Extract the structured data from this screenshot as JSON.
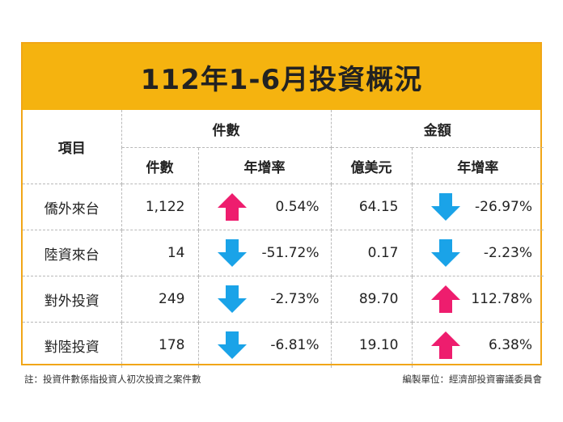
{
  "title": "112年1-6月投資概況",
  "headers": {
    "item": "項目",
    "count_group": "件數",
    "amount_group": "金額",
    "count": "件數",
    "count_growth": "年增率",
    "amount": "億美元",
    "amount_growth": "年增率"
  },
  "colors": {
    "up": "#ee1d6e",
    "down": "#1aa3e8",
    "banner": "#f5b30f"
  },
  "rows": [
    {
      "label": "僑外來台",
      "count": "1,122",
      "count_dir": "up",
      "count_rate": "0.54%",
      "amount": "64.15",
      "amount_dir": "down",
      "amount_rate": "-26.97%"
    },
    {
      "label": "陸資來台",
      "count": "14",
      "count_dir": "down",
      "count_rate": "-51.72%",
      "amount": "0.17",
      "amount_dir": "down",
      "amount_rate": "-2.23%"
    },
    {
      "label": "對外投資",
      "count": "249",
      "count_dir": "down",
      "count_rate": "-2.73%",
      "amount": "89.70",
      "amount_dir": "up",
      "amount_rate": "112.78%"
    },
    {
      "label": "對陸投資",
      "count": "178",
      "count_dir": "down",
      "count_rate": "-6.81%",
      "amount": "19.10",
      "amount_dir": "up",
      "amount_rate": "6.38%"
    }
  ],
  "note": "註：投資件數係指投資人初次投資之案件數",
  "source": "編製單位：經濟部投資審議委員會"
}
